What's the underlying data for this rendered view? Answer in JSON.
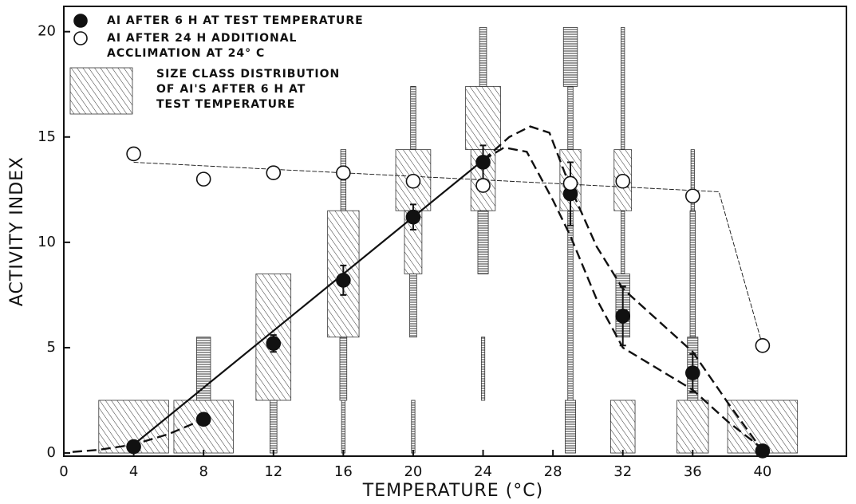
{
  "chart_data": {
    "type": "scatter",
    "xlabel": "TEMPERATURE (°C)",
    "ylabel": "ACTIVITY INDEX",
    "xlim": [
      0,
      44.8
    ],
    "ylim": [
      -0.15,
      21.2
    ],
    "xticks": [
      0,
      4,
      8,
      12,
      16,
      20,
      24,
      28,
      32,
      36,
      40
    ],
    "yticks": [
      0,
      5,
      10,
      15,
      20
    ],
    "legend": "top-left",
    "series": [
      {
        "name": [
          "AI AFTER 6 H AT TEST TEMPERATURE"
        ],
        "marker": "filled",
        "color": "#111111",
        "x": [
          4,
          8,
          12,
          16,
          20,
          24,
          29,
          32,
          36,
          40
        ],
        "values": [
          0.3,
          1.6,
          5.2,
          8.2,
          11.2,
          13.8,
          12.3,
          6.5,
          3.8,
          0.1
        ],
        "errors": [
          null,
          null,
          0.4,
          0.7,
          0.6,
          0.8,
          1.5,
          1.4,
          0.9,
          null
        ]
      },
      {
        "name": [
          "AI AFTER 24 H ADDITIONAL",
          "ACCLIMATION AT 24° C"
        ],
        "marker": "open",
        "color": "#111111",
        "x": [
          4,
          8,
          12,
          16,
          20,
          24,
          29,
          32,
          36,
          40
        ],
        "values": [
          14.2,
          13.0,
          13.3,
          13.3,
          12.9,
          12.7,
          12.8,
          12.9,
          12.2,
          5.1
        ]
      }
    ],
    "lines": [
      {
        "style": "solid",
        "x": [
          4,
          24
        ],
        "y": [
          0.4,
          13.9
        ]
      },
      {
        "style": "thin",
        "x": [
          4,
          37.5,
          40
        ],
        "y": [
          13.8,
          12.4,
          5.1
        ]
      },
      {
        "style": "dashed",
        "x": [
          0.5,
          2,
          4,
          6,
          8
        ],
        "y": [
          0.05,
          0.15,
          0.4,
          0.9,
          1.6
        ]
      },
      {
        "style": "dashed",
        "x": [
          24,
          25.5,
          26.7,
          27.8,
          29,
          30.5,
          32,
          34,
          36,
          38,
          40
        ],
        "y": [
          13.9,
          15.0,
          15.5,
          15.2,
          12.6,
          9.8,
          7.8,
          6.3,
          4.8,
          2.4,
          0.1
        ]
      },
      {
        "style": "dashed",
        "x": [
          24,
          25.2,
          26.5,
          28,
          29,
          30.5,
          32,
          34,
          36,
          38,
          40
        ],
        "y": [
          13.9,
          14.5,
          14.3,
          12.0,
          10.3,
          7.3,
          5.0,
          4.0,
          3.0,
          1.5,
          0.2
        ]
      }
    ],
    "distributions": {
      "name": [
        "SIZE CLASS DISTRIBUTION",
        "OF AI'S AFTER 6 H AT",
        "TEST TEMPERATURE"
      ],
      "groups": [
        {
          "x": 4,
          "segments": [
            {
              "lo": 0,
              "hi": 2.5,
              "halfwidth": 2.0
            }
          ]
        },
        {
          "x": 8,
          "segments": [
            {
              "lo": 0,
              "hi": 2.5,
              "halfwidth": 1.7
            },
            {
              "lo": 2.5,
              "hi": 5.5,
              "halfwidth": 0.4
            }
          ]
        },
        {
          "x": 12,
          "segments": [
            {
              "lo": 0,
              "hi": 2.5,
              "halfwidth": 0.2
            },
            {
              "lo": 2.5,
              "hi": 8.5,
              "halfwidth": 1.0
            }
          ]
        },
        {
          "x": 16,
          "segments": [
            {
              "lo": 0,
              "hi": 2.5,
              "halfwidth": 0.1
            },
            {
              "lo": 2.5,
              "hi": 5.5,
              "halfwidth": 0.2
            },
            {
              "lo": 5.5,
              "hi": 11.5,
              "halfwidth": 0.9
            },
            {
              "lo": 11.5,
              "hi": 14.4,
              "halfwidth": 0.15
            }
          ]
        },
        {
          "x": 20,
          "segments": [
            {
              "lo": 0,
              "hi": 2.5,
              "halfwidth": 0.1
            },
            {
              "lo": 5.5,
              "hi": 8.5,
              "halfwidth": 0.2
            },
            {
              "lo": 8.5,
              "hi": 11.5,
              "halfwidth": 0.5
            },
            {
              "lo": 11.5,
              "hi": 14.4,
              "halfwidth": 1.0
            },
            {
              "lo": 14.4,
              "hi": 17.4,
              "halfwidth": 0.15
            }
          ]
        },
        {
          "x": 24,
          "segments": [
            {
              "lo": 2.5,
              "hi": 5.5,
              "halfwidth": 0.1
            },
            {
              "lo": 8.5,
              "hi": 11.5,
              "halfwidth": 0.3
            },
            {
              "lo": 11.5,
              "hi": 14.4,
              "halfwidth": 0.7
            },
            {
              "lo": 14.4,
              "hi": 17.4,
              "halfwidth": 1.0
            },
            {
              "lo": 17.4,
              "hi": 20.2,
              "halfwidth": 0.2
            }
          ]
        },
        {
          "x": 29,
          "segments": [
            {
              "lo": 0,
              "hi": 2.5,
              "halfwidth": 0.3
            },
            {
              "lo": 2.5,
              "hi": 11.5,
              "halfwidth": 0.15
            },
            {
              "lo": 11.5,
              "hi": 14.4,
              "halfwidth": 0.6
            },
            {
              "lo": 14.4,
              "hi": 17.4,
              "halfwidth": 0.15
            },
            {
              "lo": 17.4,
              "hi": 20.2,
              "halfwidth": 0.4
            }
          ]
        },
        {
          "x": 32,
          "segments": [
            {
              "lo": 0,
              "hi": 2.5,
              "halfwidth": 0.7
            },
            {
              "lo": 5.5,
              "hi": 8.5,
              "halfwidth": 0.4
            },
            {
              "lo": 8.5,
              "hi": 11.5,
              "halfwidth": 0.1
            },
            {
              "lo": 11.5,
              "hi": 14.4,
              "halfwidth": 0.5
            },
            {
              "lo": 14.4,
              "hi": 20.2,
              "halfwidth": 0.1
            }
          ]
        },
        {
          "x": 36,
          "segments": [
            {
              "lo": 0,
              "hi": 2.5,
              "halfwidth": 0.9
            },
            {
              "lo": 2.5,
              "hi": 5.5,
              "halfwidth": 0.3
            },
            {
              "lo": 5.5,
              "hi": 11.5,
              "halfwidth": 0.15
            },
            {
              "lo": 11.5,
              "hi": 14.4,
              "halfwidth": 0.1
            }
          ]
        },
        {
          "x": 40,
          "segments": [
            {
              "lo": 0,
              "hi": 2.5,
              "halfwidth": 2.0
            }
          ]
        }
      ]
    }
  }
}
